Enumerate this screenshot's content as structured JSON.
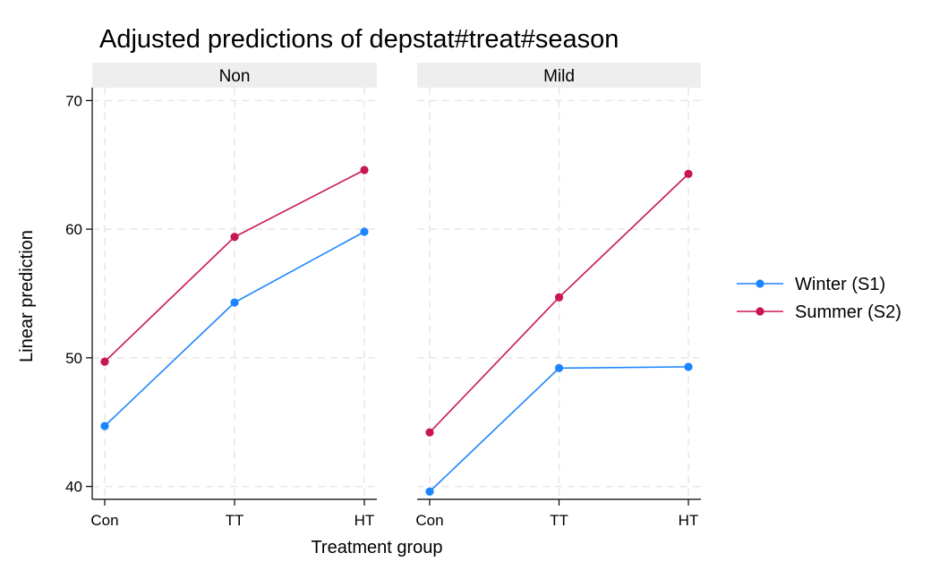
{
  "chart_data": {
    "type": "line",
    "title": "Adjusted predictions of depstat#treat#season",
    "xlabel": "Treatment group",
    "ylabel": "Linear prediction",
    "categories": [
      "Con",
      "TT",
      "HT"
    ],
    "ylim": [
      39,
      71
    ],
    "yticks": [
      40,
      50,
      60,
      70
    ],
    "grid": true,
    "legend_position": "right",
    "panels": [
      {
        "label": "Non",
        "series": [
          {
            "name": "Winter (S1)",
            "color": "#1a85ff",
            "values": [
              44.7,
              54.3,
              59.8
            ]
          },
          {
            "name": "Summer (S2)",
            "color": "#c8174e",
            "values": [
              49.7,
              59.4,
              64.6
            ]
          }
        ]
      },
      {
        "label": "Mild",
        "series": [
          {
            "name": "Winter (S1)",
            "color": "#1a85ff",
            "values": [
              39.6,
              49.2,
              49.3
            ]
          },
          {
            "name": "Summer (S2)",
            "color": "#c8174e",
            "values": [
              44.2,
              54.7,
              64.3
            ]
          }
        ]
      }
    ]
  }
}
